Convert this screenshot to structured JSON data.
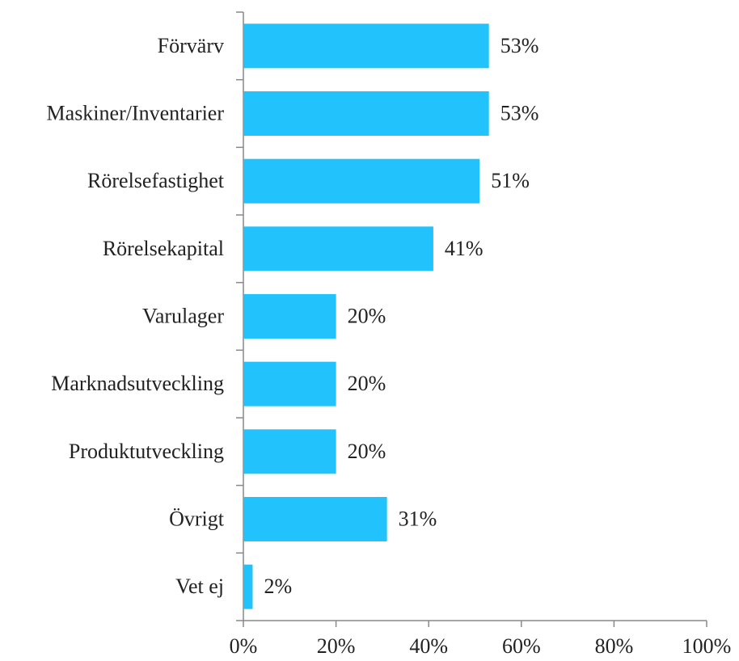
{
  "chart_data": {
    "type": "barh",
    "categories": [
      "Förvärv",
      "Maskiner/Inventarier",
      "Rörelsefastighet",
      "Rörelsekapital",
      "Varulager",
      "Marknadsutveckling",
      "Produktutveckling",
      "Övrigt",
      "Vet ej"
    ],
    "values": [
      53,
      53,
      51,
      41,
      20,
      20,
      20,
      31,
      2
    ],
    "value_labels": [
      "53%",
      "53%",
      "51%",
      "41%",
      "20%",
      "20%",
      "20%",
      "31%",
      "2%"
    ],
    "color": "#22c3fd",
    "xlim": [
      0,
      100
    ],
    "xticks": [
      {
        "value": 0,
        "label": "0%"
      },
      {
        "value": 20,
        "label": "20%"
      },
      {
        "value": 40,
        "label": "40%"
      },
      {
        "value": 60,
        "label": "60%"
      },
      {
        "value": 80,
        "label": "80%"
      },
      {
        "value": 100,
        "label": "100%"
      }
    ],
    "grid": false
  }
}
